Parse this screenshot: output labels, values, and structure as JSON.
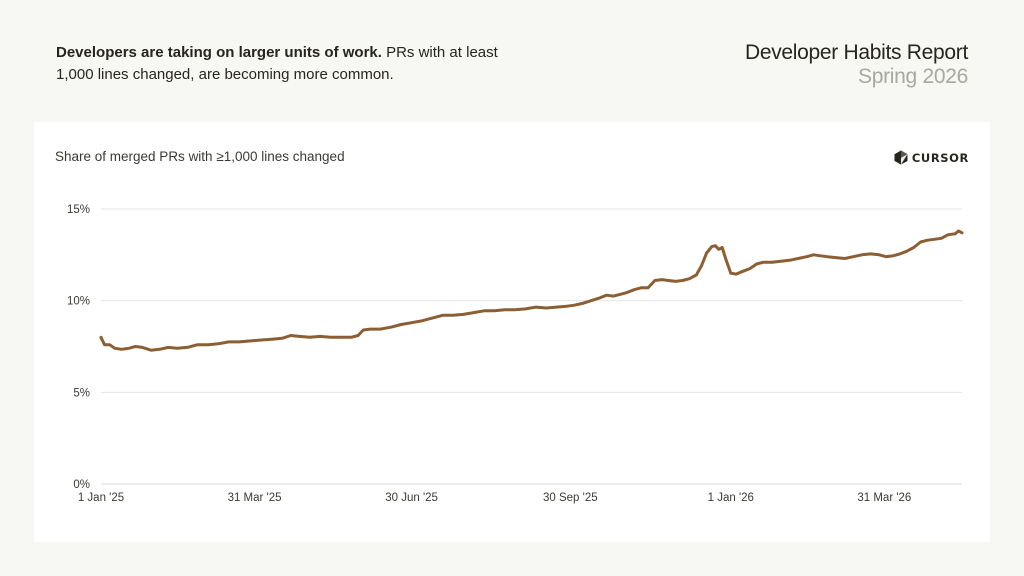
{
  "headline": {
    "bold": "Developers are taking on larger units of work.",
    "rest": " PRs with at least 1,000 lines changed, are becoming more common."
  },
  "report": {
    "title": "Developer Habits Report",
    "subtitle": "Spring 2026"
  },
  "brand": {
    "name": "CURSOR",
    "icon": "cursor-logo-icon"
  },
  "colors": {
    "line": "#8c5e34",
    "grid": "#e6e6e2",
    "axis": "#d8d8d4"
  },
  "chart_data": {
    "type": "line",
    "title": "Share of merged PRs with ≥1,000 lines changed",
    "xlabel": "",
    "ylabel": "",
    "ylim": [
      0,
      15
    ],
    "xlim": [
      "2025-01-01",
      "2026-05-15"
    ],
    "grid": true,
    "legend": "none",
    "y_ticks": [
      {
        "value": 0,
        "label": "0%"
      },
      {
        "value": 5,
        "label": "5%"
      },
      {
        "value": 10,
        "label": "10%"
      },
      {
        "value": 15,
        "label": "15%"
      }
    ],
    "x_ticks": [
      {
        "date": "2025-01-01",
        "label": "1 Jan '25"
      },
      {
        "date": "2025-03-31",
        "label": "31 Mar '25"
      },
      {
        "date": "2025-06-30",
        "label": "30 Jun '25"
      },
      {
        "date": "2025-09-30",
        "label": "30 Sep '25"
      },
      {
        "date": "2026-01-01",
        "label": "1 Jan '26"
      },
      {
        "date": "2026-03-31",
        "label": "31 Mar '26"
      }
    ],
    "series": [
      {
        "points": [
          [
            "2025-01-01",
            8.0
          ],
          [
            "2025-01-03",
            7.6
          ],
          [
            "2025-01-06",
            7.6
          ],
          [
            "2025-01-09",
            7.4
          ],
          [
            "2025-01-13",
            7.35
          ],
          [
            "2025-01-17",
            7.4
          ],
          [
            "2025-01-21",
            7.5
          ],
          [
            "2025-01-25",
            7.45
          ],
          [
            "2025-01-30",
            7.3
          ],
          [
            "2025-02-04",
            7.35
          ],
          [
            "2025-02-09",
            7.45
          ],
          [
            "2025-02-14",
            7.4
          ],
          [
            "2025-02-20",
            7.45
          ],
          [
            "2025-02-26",
            7.6
          ],
          [
            "2025-03-04",
            7.6
          ],
          [
            "2025-03-10",
            7.65
          ],
          [
            "2025-03-16",
            7.75
          ],
          [
            "2025-03-22",
            7.75
          ],
          [
            "2025-03-28",
            7.8
          ],
          [
            "2025-04-03",
            7.85
          ],
          [
            "2025-04-10",
            7.9
          ],
          [
            "2025-04-16",
            7.95
          ],
          [
            "2025-04-21",
            8.1
          ],
          [
            "2025-04-26",
            8.05
          ],
          [
            "2025-05-02",
            8.0
          ],
          [
            "2025-05-08",
            8.05
          ],
          [
            "2025-05-14",
            8.0
          ],
          [
            "2025-05-20",
            8.0
          ],
          [
            "2025-05-26",
            8.0
          ],
          [
            "2025-05-30",
            8.1
          ],
          [
            "2025-06-02",
            8.4
          ],
          [
            "2025-06-06",
            8.45
          ],
          [
            "2025-06-12",
            8.45
          ],
          [
            "2025-06-18",
            8.55
          ],
          [
            "2025-06-24",
            8.7
          ],
          [
            "2025-06-30",
            8.8
          ],
          [
            "2025-07-06",
            8.9
          ],
          [
            "2025-07-12",
            9.05
          ],
          [
            "2025-07-18",
            9.2
          ],
          [
            "2025-07-24",
            9.2
          ],
          [
            "2025-07-30",
            9.25
          ],
          [
            "2025-08-05",
            9.35
          ],
          [
            "2025-08-11",
            9.45
          ],
          [
            "2025-08-17",
            9.45
          ],
          [
            "2025-08-23",
            9.5
          ],
          [
            "2025-08-29",
            9.5
          ],
          [
            "2025-09-04",
            9.55
          ],
          [
            "2025-09-10",
            9.65
          ],
          [
            "2025-09-16",
            9.6
          ],
          [
            "2025-09-22",
            9.65
          ],
          [
            "2025-09-28",
            9.7
          ],
          [
            "2025-10-02",
            9.75
          ],
          [
            "2025-10-07",
            9.85
          ],
          [
            "2025-10-12",
            10.0
          ],
          [
            "2025-10-17",
            10.15
          ],
          [
            "2025-10-21",
            10.3
          ],
          [
            "2025-10-25",
            10.25
          ],
          [
            "2025-10-29",
            10.35
          ],
          [
            "2025-11-02",
            10.45
          ],
          [
            "2025-11-06",
            10.6
          ],
          [
            "2025-11-10",
            10.7
          ],
          [
            "2025-11-14",
            10.7
          ],
          [
            "2025-11-18",
            11.1
          ],
          [
            "2025-11-22",
            11.15
          ],
          [
            "2025-11-26",
            11.1
          ],
          [
            "2025-11-30",
            11.05
          ],
          [
            "2025-12-04",
            11.1
          ],
          [
            "2025-12-08",
            11.2
          ],
          [
            "2025-12-12",
            11.4
          ],
          [
            "2025-12-15",
            11.9
          ],
          [
            "2025-12-18",
            12.6
          ],
          [
            "2025-12-21",
            12.95
          ],
          [
            "2025-12-23",
            13.0
          ],
          [
            "2025-12-25",
            12.8
          ],
          [
            "2025-12-27",
            12.9
          ],
          [
            "2025-12-29",
            12.3
          ],
          [
            "2026-01-01",
            11.5
          ],
          [
            "2026-01-04",
            11.45
          ],
          [
            "2026-01-08",
            11.6
          ],
          [
            "2026-01-12",
            11.75
          ],
          [
            "2026-01-16",
            12.0
          ],
          [
            "2026-01-20",
            12.1
          ],
          [
            "2026-01-25",
            12.1
          ],
          [
            "2026-01-30",
            12.15
          ],
          [
            "2026-02-04",
            12.2
          ],
          [
            "2026-02-09",
            12.3
          ],
          [
            "2026-02-14",
            12.4
          ],
          [
            "2026-02-18",
            12.5
          ],
          [
            "2026-02-22",
            12.45
          ],
          [
            "2026-02-26",
            12.4
          ],
          [
            "2026-03-03",
            12.35
          ],
          [
            "2026-03-08",
            12.3
          ],
          [
            "2026-03-13",
            12.4
          ],
          [
            "2026-03-18",
            12.5
          ],
          [
            "2026-03-23",
            12.55
          ],
          [
            "2026-03-28",
            12.5
          ],
          [
            "2026-04-01",
            12.4
          ],
          [
            "2026-04-05",
            12.45
          ],
          [
            "2026-04-09",
            12.55
          ],
          [
            "2026-04-13",
            12.7
          ],
          [
            "2026-04-17",
            12.9
          ],
          [
            "2026-04-21",
            13.2
          ],
          [
            "2026-04-25",
            13.3
          ],
          [
            "2026-04-29",
            13.35
          ],
          [
            "2026-05-03",
            13.4
          ],
          [
            "2026-05-07",
            13.6
          ],
          [
            "2026-05-11",
            13.65
          ],
          [
            "2026-05-13",
            13.8
          ],
          [
            "2026-05-15",
            13.7
          ]
        ]
      }
    ]
  }
}
